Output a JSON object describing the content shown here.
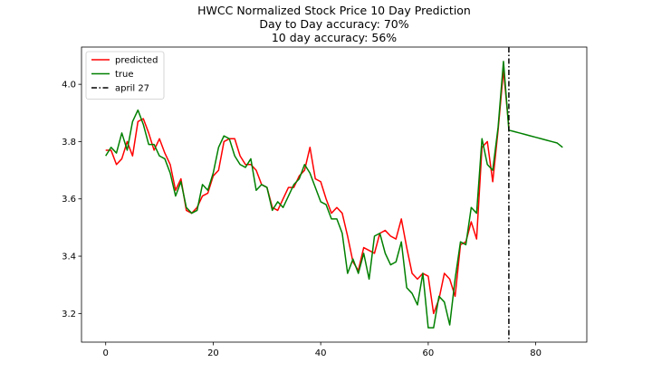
{
  "chart_data": {
    "type": "line",
    "title_lines": [
      "HWCC Normalized Stock Price 10 Day Prediction",
      "Day to Day accuracy: 70%",
      "10 day accuracy: 56%"
    ],
    "xlabel": "",
    "ylabel": "",
    "xlim": [
      -4.5,
      89.5
    ],
    "ylim": [
      3.1,
      4.13
    ],
    "x_ticks": [
      0,
      20,
      40,
      60,
      80
    ],
    "y_ticks": [
      3.2,
      3.4,
      3.6,
      3.8,
      4.0
    ],
    "grid": false,
    "legend_position": "top-left",
    "series": [
      {
        "name": "predicted",
        "color": "#ff0000",
        "x": [
          0,
          1,
          2,
          3,
          4,
          5,
          6,
          7,
          8,
          9,
          10,
          11,
          12,
          13,
          14,
          15,
          16,
          17,
          18,
          19,
          20,
          21,
          22,
          23,
          24,
          25,
          26,
          27,
          28,
          29,
          30,
          31,
          32,
          33,
          34,
          35,
          36,
          37,
          38,
          39,
          40,
          41,
          42,
          43,
          44,
          45,
          46,
          47,
          48,
          49,
          50,
          51,
          52,
          53,
          54,
          55,
          56,
          57,
          58,
          59,
          60,
          61,
          62,
          63,
          64,
          65,
          66,
          67,
          68,
          69,
          70,
          71,
          72,
          73,
          74,
          75
        ],
        "values": [
          3.77,
          3.77,
          3.72,
          3.74,
          3.8,
          3.75,
          3.87,
          3.88,
          3.83,
          3.77,
          3.81,
          3.76,
          3.72,
          3.63,
          3.67,
          3.56,
          3.55,
          3.57,
          3.61,
          3.62,
          3.68,
          3.7,
          3.8,
          3.81,
          3.81,
          3.75,
          3.72,
          3.72,
          3.7,
          3.65,
          3.64,
          3.57,
          3.56,
          3.6,
          3.64,
          3.64,
          3.68,
          3.7,
          3.78,
          3.67,
          3.66,
          3.6,
          3.55,
          3.57,
          3.55,
          3.47,
          3.38,
          3.35,
          3.43,
          3.42,
          3.41,
          3.48,
          3.49,
          3.47,
          3.46,
          3.53,
          3.43,
          3.34,
          3.32,
          3.34,
          3.33,
          3.2,
          3.25,
          3.34,
          3.32,
          3.26,
          3.44,
          3.45,
          3.52,
          3.46,
          3.78,
          3.8,
          3.66,
          3.84,
          4.05,
          3.85
        ]
      },
      {
        "name": "true",
        "color": "#008000",
        "x": [
          0,
          1,
          2,
          3,
          4,
          5,
          6,
          7,
          8,
          9,
          10,
          11,
          12,
          13,
          14,
          15,
          16,
          17,
          18,
          19,
          20,
          21,
          22,
          23,
          24,
          25,
          26,
          27,
          28,
          29,
          30,
          31,
          32,
          33,
          34,
          35,
          36,
          37,
          38,
          39,
          40,
          41,
          42,
          43,
          44,
          45,
          46,
          47,
          48,
          49,
          50,
          51,
          52,
          53,
          54,
          55,
          56,
          57,
          58,
          59,
          60,
          61,
          62,
          63,
          64,
          65,
          66,
          67,
          68,
          69,
          70,
          71,
          72,
          73,
          74,
          75,
          76,
          77,
          78,
          79,
          80,
          81,
          82,
          83,
          84,
          85
        ],
        "values": [
          3.75,
          3.78,
          3.76,
          3.83,
          3.77,
          3.87,
          3.91,
          3.86,
          3.79,
          3.79,
          3.75,
          3.74,
          3.69,
          3.61,
          3.66,
          3.57,
          3.55,
          3.56,
          3.65,
          3.63,
          3.69,
          3.78,
          3.82,
          3.81,
          3.75,
          3.72,
          3.71,
          3.74,
          3.63,
          3.65,
          3.64,
          3.56,
          3.59,
          3.57,
          3.61,
          3.65,
          3.67,
          3.72,
          3.69,
          3.64,
          3.59,
          3.58,
          3.53,
          3.53,
          3.48,
          3.34,
          3.39,
          3.34,
          3.41,
          3.32,
          3.47,
          3.48,
          3.41,
          3.37,
          3.38,
          3.45,
          3.29,
          3.27,
          3.23,
          3.34,
          3.15,
          3.15,
          3.26,
          3.24,
          3.16,
          3.32,
          3.45,
          3.44,
          3.57,
          3.55,
          3.81,
          3.72,
          3.7,
          3.85,
          4.08,
          3.84,
          3.835,
          3.83,
          3.825,
          3.82,
          3.815,
          3.81,
          3.805,
          3.8,
          3.795,
          3.78
        ]
      }
    ],
    "vertical_line": {
      "name": "april 27",
      "x": 75,
      "color": "#000000",
      "style": "dash-dot"
    }
  }
}
